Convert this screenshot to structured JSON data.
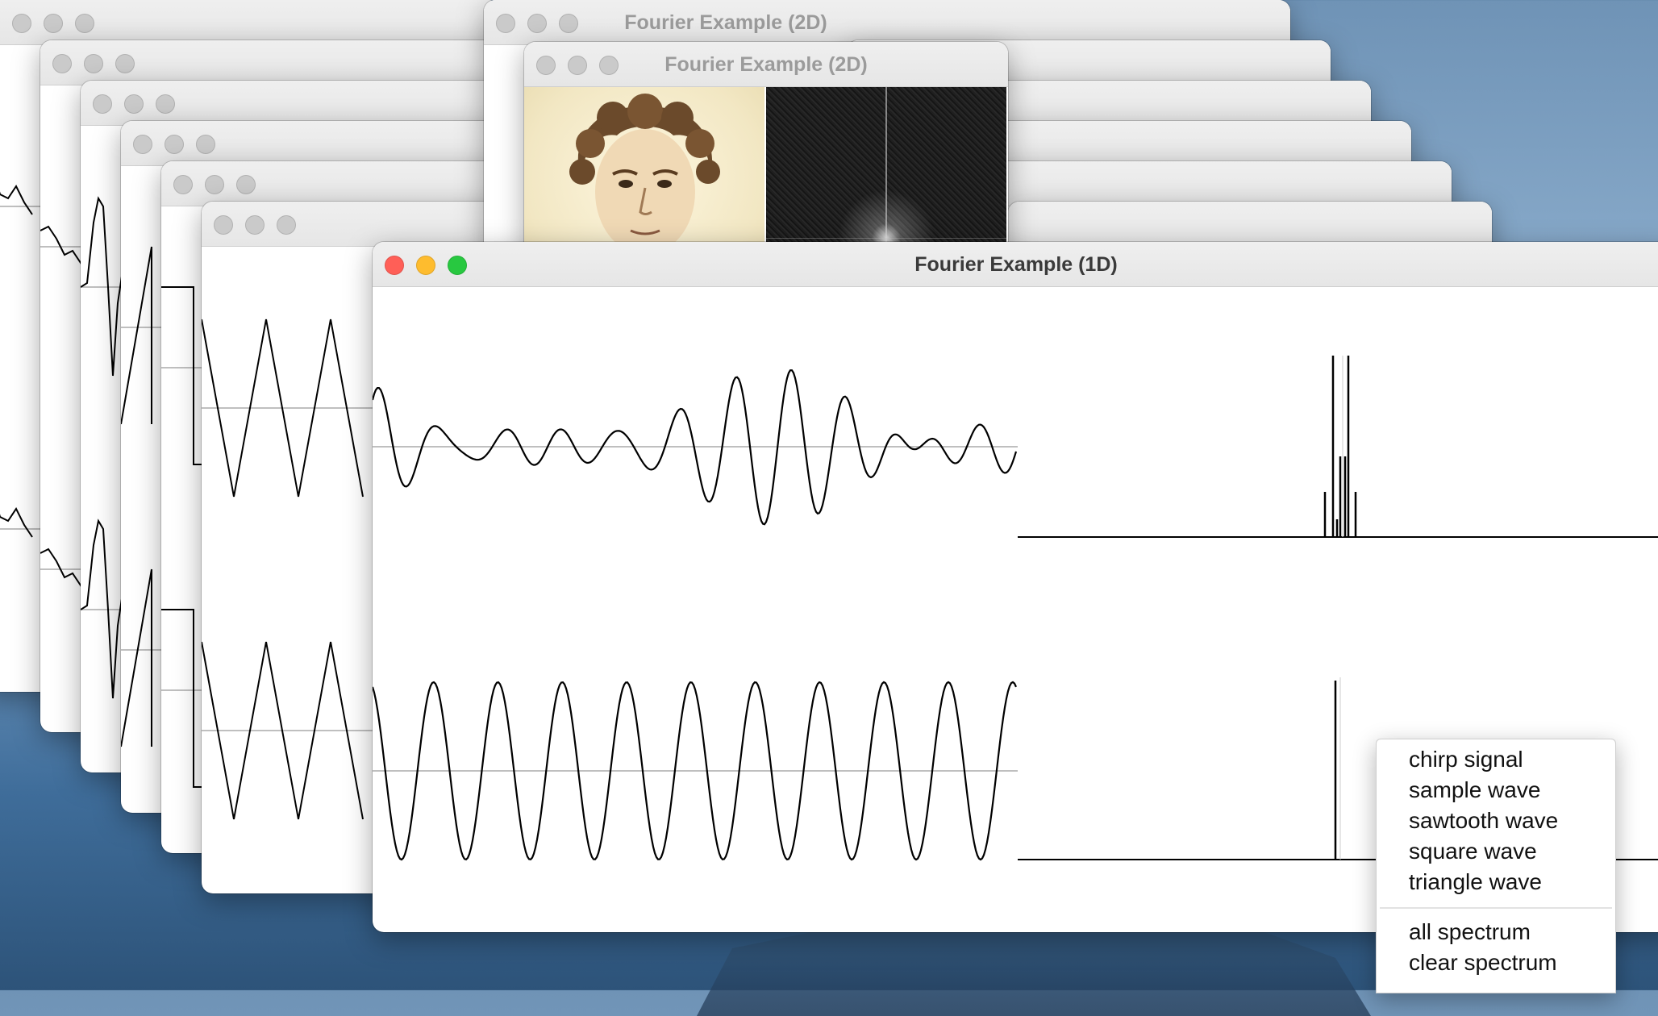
{
  "windows": {
    "back_2d": {
      "title": "Fourier Example (2D)"
    },
    "front_2d": {
      "title": "Fourier Example (2D)"
    },
    "main": {
      "title": "Fourier Example (1D)"
    }
  },
  "background_window_count": 6,
  "icons": {
    "close": "close-button",
    "minimize": "minimize-button",
    "zoom": "zoom-button"
  },
  "colors": {
    "close": "#ff5f57",
    "minimize": "#febc2e",
    "zoom": "#28c840",
    "plot_line": "#000000",
    "zero_line": "#aaaaaa"
  },
  "menu": {
    "signals": [
      {
        "label": "chirp signal"
      },
      {
        "label": "sample wave"
      },
      {
        "label": "sawtooth wave"
      },
      {
        "label": "square wave"
      },
      {
        "label": "triangle wave"
      }
    ],
    "spectrum": [
      {
        "label": "all spectrum"
      },
      {
        "label": "clear spectrum"
      }
    ]
  }
}
